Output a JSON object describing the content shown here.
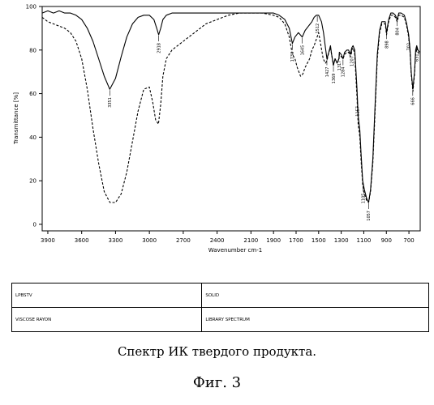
{
  "chart_data": {
    "type": "line",
    "xlabel": "Wavenumber cm-1",
    "ylabel": "Transmittance [%]",
    "xlim": [
      3950,
      600
    ],
    "ylim": [
      -3,
      100
    ],
    "x_reversed": true,
    "x_ticks": [
      3900,
      3600,
      3300,
      3000,
      2700,
      2400,
      2100,
      1900,
      1700,
      1500,
      1300,
      1100,
      900,
      700
    ],
    "y_ticks": [
      0,
      20,
      40,
      60,
      80,
      100
    ],
    "grid": false,
    "legend": "none",
    "series": [
      {
        "style": "solid",
        "color": "#000000",
        "points": [
          [
            3950,
            97
          ],
          [
            3900,
            98
          ],
          [
            3850,
            97
          ],
          [
            3800,
            98
          ],
          [
            3750,
            97
          ],
          [
            3700,
            97
          ],
          [
            3650,
            96
          ],
          [
            3600,
            94
          ],
          [
            3550,
            90
          ],
          [
            3500,
            84
          ],
          [
            3450,
            76
          ],
          [
            3400,
            68
          ],
          [
            3351,
            62
          ],
          [
            3300,
            67
          ],
          [
            3250,
            77
          ],
          [
            3200,
            86
          ],
          [
            3150,
            92
          ],
          [
            3100,
            95
          ],
          [
            3050,
            96
          ],
          [
            3000,
            96
          ],
          [
            2960,
            94
          ],
          [
            2935,
            90
          ],
          [
            2918,
            87
          ],
          [
            2900,
            90
          ],
          [
            2880,
            94
          ],
          [
            2850,
            96
          ],
          [
            2800,
            97
          ],
          [
            2700,
            97
          ],
          [
            2600,
            97
          ],
          [
            2500,
            97
          ],
          [
            2400,
            97
          ],
          [
            2300,
            97
          ],
          [
            2200,
            97
          ],
          [
            2100,
            97
          ],
          [
            2000,
            97
          ],
          [
            1950,
            97
          ],
          [
            1900,
            97
          ],
          [
            1850,
            96
          ],
          [
            1800,
            94
          ],
          [
            1760,
            90
          ],
          [
            1733,
            83
          ],
          [
            1710,
            86
          ],
          [
            1680,
            88
          ],
          [
            1645,
            86
          ],
          [
            1620,
            89
          ],
          [
            1590,
            91
          ],
          [
            1560,
            93
          ],
          [
            1540,
            95
          ],
          [
            1520,
            96
          ],
          [
            1500,
            96
          ],
          [
            1475,
            93
          ],
          [
            1457,
            88
          ],
          [
            1440,
            81
          ],
          [
            1427,
            76
          ],
          [
            1410,
            79
          ],
          [
            1395,
            82
          ],
          [
            1385,
            78
          ],
          [
            1369,
            73
          ],
          [
            1355,
            76
          ],
          [
            1337,
            74
          ],
          [
            1320,
            76
          ],
          [
            1317,
            79
          ],
          [
            1300,
            78
          ],
          [
            1284,
            76
          ],
          [
            1270,
            79
          ],
          [
            1250,
            80
          ],
          [
            1235,
            80
          ],
          [
            1220,
            78
          ],
          [
            1207,
            81
          ],
          [
            1195,
            82
          ],
          [
            1180,
            80
          ],
          [
            1160,
            62
          ],
          [
            1150,
            50
          ],
          [
            1135,
            43
          ],
          [
            1125,
            33
          ],
          [
            1110,
            20
          ],
          [
            1095,
            16
          ],
          [
            1075,
            12
          ],
          [
            1057,
            10
          ],
          [
            1040,
            16
          ],
          [
            1020,
            30
          ],
          [
            1000,
            55
          ],
          [
            980,
            78
          ],
          [
            960,
            89
          ],
          [
            940,
            93
          ],
          [
            910,
            93
          ],
          [
            898,
            88
          ],
          [
            880,
            94
          ],
          [
            860,
            97
          ],
          [
            840,
            97
          ],
          [
            820,
            96
          ],
          [
            804,
            94
          ],
          [
            790,
            97
          ],
          [
            770,
            97
          ],
          [
            740,
            96
          ],
          [
            720,
            92
          ],
          [
            702,
            87
          ],
          [
            690,
            80
          ],
          [
            680,
            70
          ],
          [
            665,
            62
          ],
          [
            650,
            70
          ],
          [
            640,
            80
          ],
          [
            631,
            82
          ],
          [
            620,
            80
          ],
          [
            605,
            79
          ]
        ]
      },
      {
        "style": "dashed",
        "color": "#000000",
        "points": [
          [
            3950,
            95
          ],
          [
            3900,
            93
          ],
          [
            3850,
            92
          ],
          [
            3800,
            91
          ],
          [
            3750,
            90
          ],
          [
            3700,
            88
          ],
          [
            3650,
            84
          ],
          [
            3600,
            76
          ],
          [
            3550,
            62
          ],
          [
            3500,
            44
          ],
          [
            3450,
            28
          ],
          [
            3400,
            15
          ],
          [
            3350,
            10
          ],
          [
            3300,
            10
          ],
          [
            3250,
            14
          ],
          [
            3200,
            24
          ],
          [
            3150,
            38
          ],
          [
            3100,
            52
          ],
          [
            3050,
            62
          ],
          [
            3000,
            63
          ],
          [
            2970,
            56
          ],
          [
            2945,
            48
          ],
          [
            2920,
            46
          ],
          [
            2900,
            55
          ],
          [
            2880,
            68
          ],
          [
            2850,
            76
          ],
          [
            2800,
            80
          ],
          [
            2750,
            82
          ],
          [
            2700,
            84
          ],
          [
            2600,
            88
          ],
          [
            2500,
            92
          ],
          [
            2400,
            94
          ],
          [
            2300,
            96
          ],
          [
            2200,
            97
          ],
          [
            2100,
            97
          ],
          [
            2000,
            97
          ],
          [
            1900,
            96
          ],
          [
            1850,
            95
          ],
          [
            1800,
            92
          ],
          [
            1760,
            86
          ],
          [
            1733,
            78
          ],
          [
            1710,
            76
          ],
          [
            1690,
            72
          ],
          [
            1660,
            68
          ],
          [
            1640,
            69
          ],
          [
            1620,
            72
          ],
          [
            1600,
            74
          ],
          [
            1580,
            76
          ],
          [
            1560,
            80
          ],
          [
            1540,
            82
          ],
          [
            1520,
            85
          ],
          [
            1500,
            88
          ],
          [
            1480,
            82
          ],
          [
            1460,
            76
          ],
          [
            1440,
            74
          ],
          [
            1427,
            75
          ],
          [
            1410,
            79
          ],
          [
            1395,
            81
          ],
          [
            1385,
            78
          ],
          [
            1369,
            73
          ],
          [
            1355,
            76
          ],
          [
            1337,
            74
          ],
          [
            1320,
            76
          ],
          [
            1317,
            78
          ],
          [
            1300,
            77
          ],
          [
            1284,
            76
          ],
          [
            1270,
            78
          ],
          [
            1250,
            79
          ],
          [
            1235,
            79
          ],
          [
            1220,
            77
          ],
          [
            1207,
            80
          ],
          [
            1195,
            81
          ],
          [
            1180,
            78
          ],
          [
            1160,
            58
          ],
          [
            1150,
            46
          ],
          [
            1135,
            40
          ],
          [
            1125,
            30
          ],
          [
            1110,
            18
          ],
          [
            1095,
            14
          ],
          [
            1075,
            11
          ],
          [
            1057,
            10
          ],
          [
            1040,
            15
          ],
          [
            1020,
            28
          ],
          [
            1000,
            52
          ],
          [
            980,
            76
          ],
          [
            960,
            88
          ],
          [
            940,
            92
          ],
          [
            910,
            92
          ],
          [
            898,
            87
          ],
          [
            880,
            93
          ],
          [
            860,
            96
          ],
          [
            840,
            96
          ],
          [
            820,
            95
          ],
          [
            804,
            93
          ],
          [
            790,
            96
          ],
          [
            770,
            96
          ],
          [
            740,
            95
          ],
          [
            720,
            91
          ],
          [
            702,
            86
          ],
          [
            690,
            79
          ],
          [
            680,
            69
          ],
          [
            665,
            61
          ],
          [
            650,
            69
          ],
          [
            640,
            79
          ],
          [
            631,
            81
          ],
          [
            620,
            79
          ],
          [
            605,
            78
          ]
        ]
      }
    ],
    "peaks": [
      {
        "x": 3351,
        "y": 62,
        "label": "3351"
      },
      {
        "x": 2918,
        "y": 87,
        "label": "2918"
      },
      {
        "x": 1733,
        "y": 83,
        "label": "1733"
      },
      {
        "x": 1645,
        "y": 86,
        "label": "1645"
      },
      {
        "x": 1512,
        "y": 96,
        "label": "1512"
      },
      {
        "x": 1427,
        "y": 76,
        "label": "1427"
      },
      {
        "x": 1369,
        "y": 73,
        "label": "1369"
      },
      {
        "x": 1317,
        "y": 79,
        "label": "1317"
      },
      {
        "x": 1284,
        "y": 76,
        "label": "1284"
      },
      {
        "x": 1207,
        "y": 81,
        "label": "1207"
      },
      {
        "x": 1157,
        "y": 58,
        "label": "1157"
      },
      {
        "x": 1105,
        "y": 18,
        "label": "1105"
      },
      {
        "x": 1057,
        "y": 10,
        "label": "1057"
      },
      {
        "x": 898,
        "y": 88,
        "label": "898"
      },
      {
        "x": 804,
        "y": 94,
        "label": "804"
      },
      {
        "x": 702,
        "y": 87,
        "label": "702"
      },
      {
        "x": 666,
        "y": 62,
        "label": "666"
      },
      {
        "x": 631,
        "y": 82,
        "label": "631"
      }
    ]
  },
  "table": {
    "rows": [
      [
        "LPBSTV",
        "SOLID"
      ],
      [
        "VISCOSE RAYON",
        "LIBRARY SPECTRUM"
      ]
    ]
  },
  "caption": "Спектр ИК твердого продукта.",
  "figure_label": "Фиг. 3"
}
